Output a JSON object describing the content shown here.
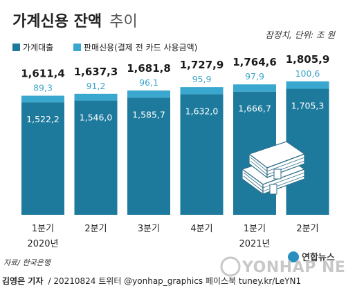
{
  "header": {
    "title_main": "가계신용 잔액",
    "title_sub": "추이",
    "unit_note": "잠정치, 단위: 조 원"
  },
  "legend": [
    {
      "label": "가계대출",
      "color": "#1e7a9c"
    },
    {
      "label": "판매신용(결제 전 카드 사용금액)",
      "color": "#3aa7cf"
    }
  ],
  "chart_data": {
    "type": "bar",
    "stacked": true,
    "title": "가계신용 잔액 추이",
    "categories": [
      "1분기",
      "2분기",
      "3분기",
      "4분기",
      "1분기",
      "2분기"
    ],
    "year_labels": [
      {
        "label": "2020년",
        "index": 0
      },
      {
        "label": "2021년",
        "index": 4
      }
    ],
    "series": [
      {
        "name": "가계대출",
        "values": [
          1522.2,
          1546.0,
          1585.7,
          1632.0,
          1666.7,
          1705.3
        ],
        "labels": [
          "1,522,2",
          "1,546,0",
          "1,585,7",
          "1,632,0",
          "1,666,7",
          "1,705,3"
        ],
        "color": "#1e7a9c"
      },
      {
        "name": "판매신용(결제 전 카드 사용금액)",
        "values": [
          89.3,
          91.2,
          96.1,
          95.9,
          97.9,
          100.6
        ],
        "labels": [
          "89,3",
          "91,2",
          "96,1",
          "95,9",
          "97,9",
          "100,6"
        ],
        "color": "#3aa7cf"
      }
    ],
    "totals": [
      1611.4,
      1637.3,
      1681.8,
      1727.9,
      1764.6,
      1805.9
    ],
    "total_labels": [
      "1,611,4",
      "1,637,3",
      "1,681,8",
      "1,727,9",
      "1,764,6",
      "1,805,9"
    ],
    "unit": "조 원",
    "grid": false,
    "legend_position": "top-left"
  },
  "footer": {
    "source": "자료/ 한국은행",
    "author": "김영은 기자",
    "credits": "/ 20210824   트위터 @yonhap_graphics   페이스북 tuney.kr/LeYN1",
    "brand": "연합뉴스",
    "watermark": "YONHAP NEWS"
  }
}
